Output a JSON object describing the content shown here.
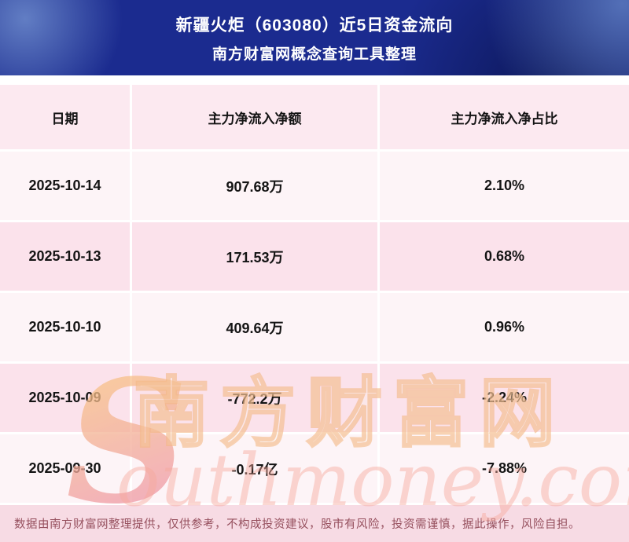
{
  "banner": {
    "title": "新疆火炬（603080）近5日资金流向",
    "subtitle": "南方财富网概念查询工具整理"
  },
  "chart_data": {
    "type": "table",
    "title": "新疆火炬（603080）近5日资金流向",
    "subtitle": "南方财富网概念查询工具整理",
    "columns": [
      "日期",
      "主力净流入净额",
      "主力净流入净占比"
    ],
    "rows": [
      [
        "2025-10-14",
        "907.68万",
        "2.10%"
      ],
      [
        "2025-10-13",
        "171.53万",
        "0.68%"
      ],
      [
        "2025-10-10",
        "409.64万",
        "0.96%"
      ],
      [
        "2025-10-09",
        "-772.2万",
        "-2.24%"
      ],
      [
        "2025-09-30",
        "-0.17亿",
        "-7.88%"
      ]
    ]
  },
  "watermark": {
    "initial": "S",
    "cn": "南方财富网",
    "en": "outhmoney.com"
  },
  "footer": {
    "disclaimer": "数据由南方财富网整理提供，仅供参考，不构成投资建议，股市有风险，投资需谨慎，据此操作，风险自担。"
  },
  "colors": {
    "banner_blue": "#1b2b8f",
    "header_row_pink": "#fce9f0",
    "row_pink": "#fbe2eb",
    "row_light": "#fdf4f7",
    "footer_bg": "#f7dbe4",
    "footer_text": "#96505e",
    "watermark_orange": "#f2b280"
  }
}
